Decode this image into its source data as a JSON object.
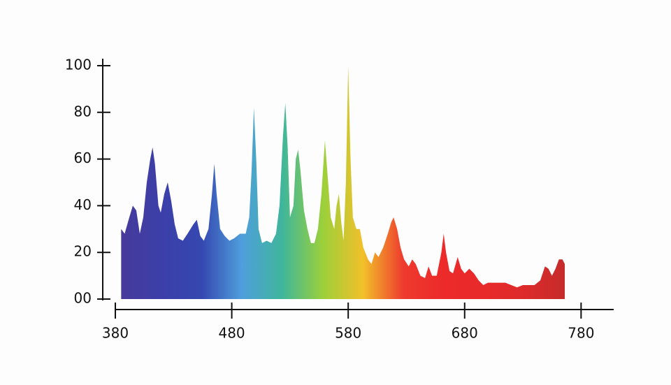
{
  "chart_data": {
    "type": "area",
    "x": [
      385,
      388,
      392,
      395,
      398,
      401,
      404,
      407,
      410,
      412,
      414,
      417,
      419,
      422,
      425,
      428,
      431,
      434,
      438,
      442,
      447,
      450,
      453,
      456,
      460,
      463,
      465,
      467,
      470,
      474,
      478,
      482,
      487,
      492,
      495,
      497,
      499,
      501,
      503,
      506,
      510,
      514,
      518,
      521,
      524,
      526,
      528,
      530,
      533,
      535,
      537,
      539,
      542,
      545,
      548,
      551,
      554,
      557,
      560,
      562,
      565,
      568,
      570,
      572,
      574,
      576,
      578,
      580,
      582,
      584,
      587,
      590,
      593,
      597,
      600,
      603,
      606,
      610,
      614,
      617,
      619,
      622,
      625,
      628,
      632,
      635,
      638,
      642,
      646,
      649,
      652,
      656,
      660,
      662,
      664,
      667,
      670,
      674,
      677,
      680,
      684,
      688,
      692,
      696,
      700,
      705,
      710,
      715,
      720,
      725,
      730,
      735,
      740,
      745,
      749,
      752,
      755,
      758,
      761,
      764,
      766
    ],
    "values": [
      30,
      28,
      35,
      40,
      38,
      28,
      35,
      50,
      60,
      65,
      58,
      40,
      37,
      45,
      50,
      42,
      32,
      26,
      25,
      28,
      32,
      34,
      27,
      25,
      30,
      45,
      58,
      45,
      30,
      27,
      25,
      26,
      28,
      28,
      35,
      55,
      82,
      60,
      30,
      24,
      25,
      24,
      28,
      40,
      70,
      84,
      65,
      35,
      40,
      60,
      64,
      55,
      38,
      30,
      24,
      24,
      30,
      45,
      68,
      55,
      35,
      30,
      40,
      45,
      33,
      25,
      50,
      100,
      60,
      35,
      30,
      30,
      22,
      17,
      15,
      20,
      18,
      22,
      28,
      33,
      35,
      30,
      22,
      17,
      14,
      17,
      15,
      10,
      9,
      14,
      10,
      10,
      20,
      28,
      20,
      12,
      11,
      18,
      13,
      11,
      13,
      11,
      8,
      6,
      7,
      7,
      7,
      7,
      6,
      5,
      6,
      6,
      6,
      8,
      14,
      13,
      10,
      13,
      17,
      17,
      15
    ],
    "gradient": [
      "#473a9b",
      "#3c3fa9",
      "#3548b1",
      "#4f9fdc",
      "#3fb69b",
      "#9bd03a",
      "#f2c02a",
      "#ee3a2e",
      "#ec2a2a",
      "#e82a2a",
      "#dd2b2b",
      "#c62b2b"
    ],
    "xlim": [
      380,
      808
    ],
    "xticks": [
      380,
      480,
      580,
      680,
      780
    ],
    "ylim": [
      0,
      100
    ],
    "yticks": [
      {
        "value": 0,
        "label": "00"
      },
      20,
      40,
      60,
      80,
      100
    ]
  }
}
